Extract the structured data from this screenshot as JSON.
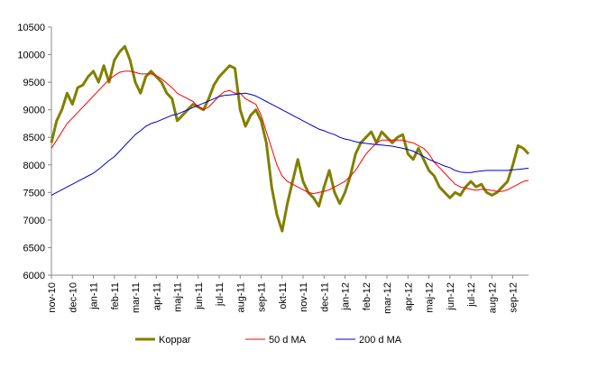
{
  "chart_data": {
    "type": "line",
    "categories": [
      "nov-10",
      null,
      null,
      null,
      "dec-10",
      null,
      null,
      null,
      "jan-11",
      null,
      null,
      null,
      "feb-11",
      null,
      null,
      null,
      "mar-11",
      null,
      null,
      null,
      "apr-11",
      null,
      null,
      null,
      "maj-11",
      null,
      null,
      null,
      "jun-11",
      null,
      null,
      null,
      "jul-11",
      null,
      null,
      null,
      "aug-11",
      null,
      null,
      null,
      "sep-11",
      null,
      null,
      null,
      "okt-11",
      null,
      null,
      null,
      "nov-11",
      null,
      null,
      null,
      "dec-11",
      null,
      null,
      null,
      "jan-12",
      null,
      null,
      null,
      "feb-12",
      null,
      null,
      null,
      "mar-12",
      null,
      null,
      null,
      "apr-12",
      null,
      null,
      null,
      "maj-12",
      null,
      null,
      null,
      "jun-12",
      null,
      null,
      null,
      "jul-12",
      null,
      null,
      null,
      "aug-12",
      null,
      null,
      null,
      "sep-12",
      null,
      null,
      null
    ],
    "series": [
      {
        "name": "Koppar",
        "color": "#808000",
        "values": [
          8400,
          8800,
          9000,
          9300,
          9100,
          9400,
          9450,
          9600,
          9700,
          9500,
          9800,
          9500,
          9900,
          10050,
          10150,
          9900,
          9500,
          9300,
          9600,
          9700,
          9600,
          9500,
          9300,
          9200,
          8800,
          8900,
          9000,
          9100,
          9050,
          9000,
          9200,
          9450,
          9600,
          9700,
          9800,
          9750,
          9000,
          8700,
          8900,
          9000,
          8800,
          8400,
          7600,
          7100,
          6800,
          7300,
          7700,
          8100,
          7700,
          7500,
          7400,
          7250,
          7600,
          7900,
          7500,
          7300,
          7500,
          7800,
          8200,
          8400,
          8500,
          8600,
          8400,
          8600,
          8500,
          8400,
          8500,
          8550,
          8200,
          8100,
          8300,
          8100,
          7900,
          7800,
          7600,
          7500,
          7400,
          7500,
          7450,
          7600,
          7700,
          7600,
          7650,
          7500,
          7450,
          7500,
          7600,
          7700,
          8000,
          8350,
          8300,
          8200
        ]
      },
      {
        "name": "50 d MA",
        "color": "#ff0000",
        "values": [
          8300,
          8450,
          8600,
          8750,
          8850,
          8950,
          9050,
          9150,
          9250,
          9350,
          9450,
          9550,
          9620,
          9680,
          9700,
          9700,
          9680,
          9650,
          9650,
          9650,
          9620,
          9560,
          9480,
          9400,
          9300,
          9250,
          9200,
          9150,
          9050,
          9000,
          9050,
          9150,
          9250,
          9330,
          9350,
          9300,
          9300,
          9200,
          9150,
          9100,
          8900,
          8600,
          8300,
          8000,
          7800,
          7700,
          7650,
          7600,
          7550,
          7500,
          7480,
          7500,
          7520,
          7550,
          7600,
          7650,
          7700,
          7800,
          7900,
          8050,
          8200,
          8300,
          8400,
          8450,
          8450,
          8450,
          8450,
          8450,
          8420,
          8400,
          8350,
          8300,
          8200,
          8050,
          7950,
          7850,
          7750,
          7650,
          7600,
          7580,
          7560,
          7540,
          7560,
          7550,
          7540,
          7520,
          7520,
          7550,
          7600,
          7650,
          7700,
          7720
        ]
      },
      {
        "name": "200 d MA",
        "color": "#0000cc",
        "values": [
          7450,
          7500,
          7550,
          7600,
          7650,
          7700,
          7750,
          7800,
          7850,
          7920,
          8000,
          8080,
          8150,
          8250,
          8350,
          8450,
          8550,
          8620,
          8700,
          8750,
          8780,
          8820,
          8860,
          8900,
          8920,
          8960,
          9000,
          9040,
          9080,
          9120,
          9160,
          9200,
          9240,
          9260,
          9270,
          9280,
          9290,
          9300,
          9280,
          9250,
          9200,
          9150,
          9100,
          9050,
          9000,
          8950,
          8900,
          8850,
          8800,
          8750,
          8700,
          8650,
          8620,
          8580,
          8550,
          8500,
          8470,
          8450,
          8420,
          8400,
          8390,
          8380,
          8370,
          8360,
          8350,
          8340,
          8320,
          8300,
          8280,
          8250,
          8200,
          8150,
          8100,
          8060,
          8020,
          7980,
          7950,
          7900,
          7870,
          7860,
          7860,
          7880,
          7890,
          7900,
          7900,
          7900,
          7900,
          7900,
          7910,
          7920,
          7930,
          7940
        ]
      }
    ],
    "ylim": [
      6000,
      10500
    ],
    "yticks": [
      6000,
      6500,
      7000,
      7500,
      8000,
      8500,
      9000,
      9500,
      10000,
      10500
    ],
    "grid": false,
    "legend": "bottom"
  }
}
